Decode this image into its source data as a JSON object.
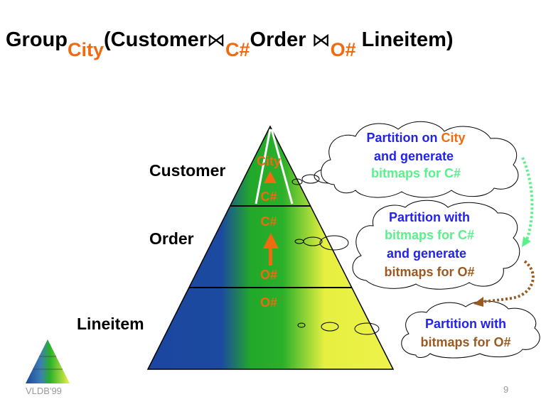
{
  "title": {
    "group": "Group",
    "group_sub": "City",
    "open": "(Customer",
    "join1_symbol": "⋈",
    "join1_sub": "C#",
    "order": "Order ",
    "join2_symbol": "⋈",
    "join2_sub": "O#",
    "close": " Lineitem)"
  },
  "levels": [
    "Customer",
    "Order",
    "Lineitem"
  ],
  "pyramid_marks": {
    "customer_top": "City",
    "customer_bottom": "C#",
    "order_top": "C#",
    "order_bottom": "O#",
    "lineitem_top": "O#"
  },
  "clouds": [
    {
      "lines": [
        [
          "Partition on ",
          "City"
        ],
        [
          "and generate"
        ],
        [
          "bitmaps for C#"
        ]
      ]
    },
    {
      "lines": [
        [
          "Partition with"
        ],
        [
          "bitmaps for C#"
        ],
        [
          "and generate"
        ],
        [
          "bitmaps for O#"
        ]
      ]
    },
    {
      "lines": [
        [
          "Partition with"
        ],
        [
          "bitmaps for O#"
        ]
      ]
    }
  ],
  "colors": {
    "blue": "#2323e8",
    "orange": "#f06a10",
    "green": "#5cf08c",
    "brown": "#9a5a20"
  },
  "footer": {
    "left": "VLDB'99",
    "page": "9"
  }
}
